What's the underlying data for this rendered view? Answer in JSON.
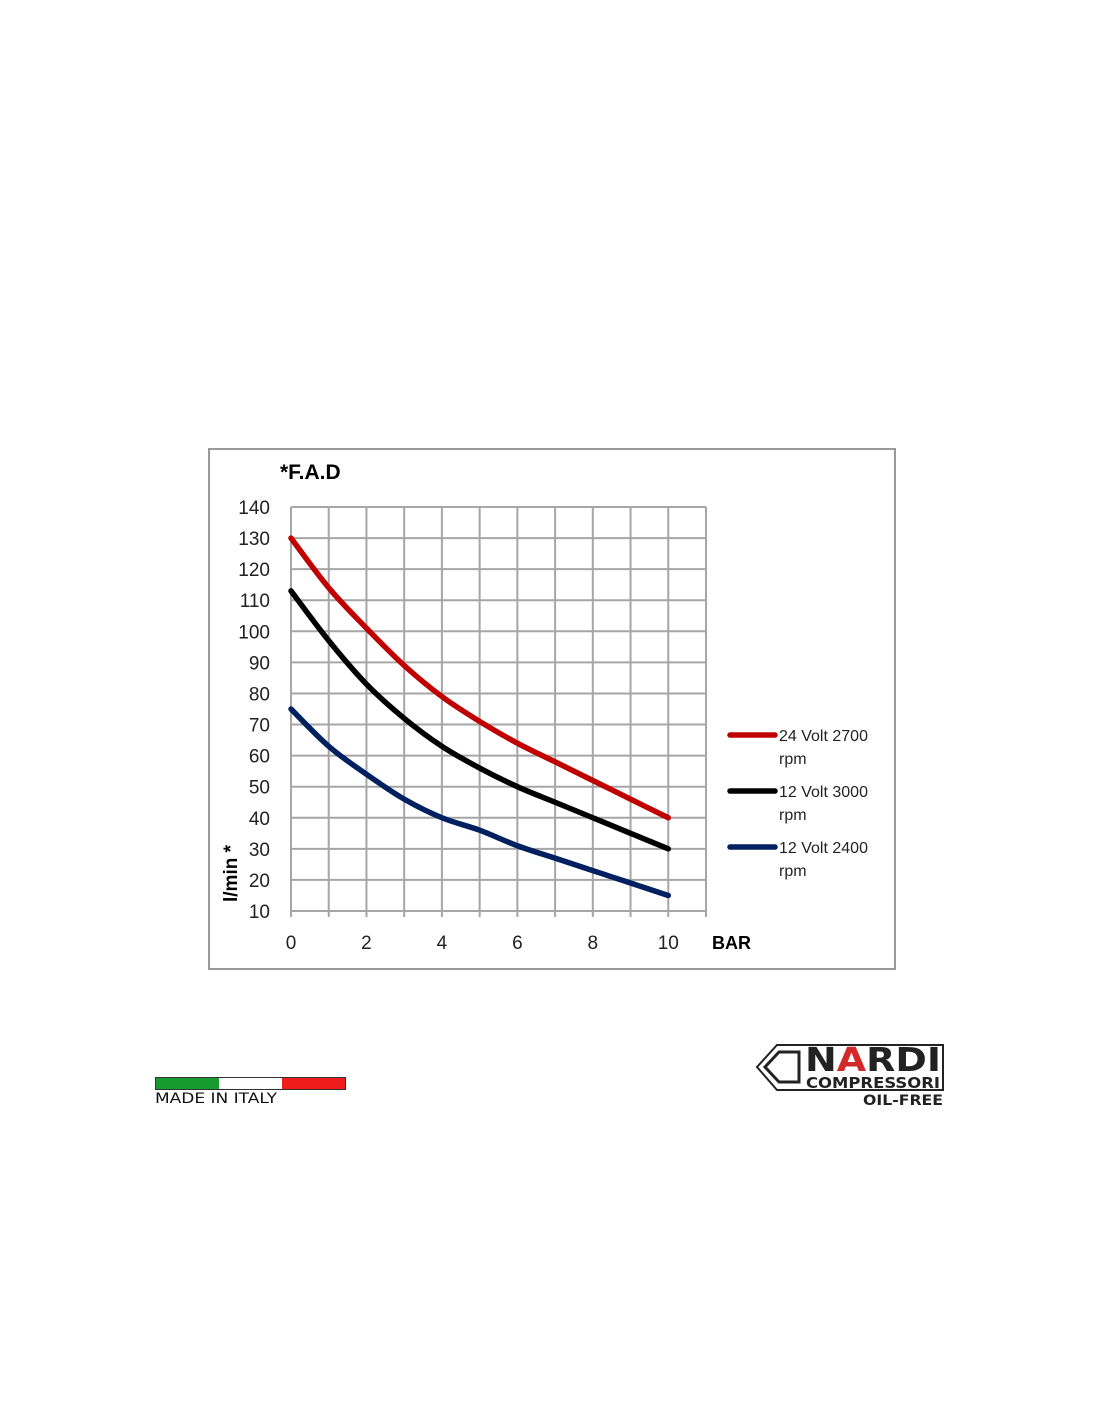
{
  "chart_data": {
    "type": "line",
    "title": "*F.A.D",
    "xlabel": "BAR",
    "ylabel": "l/min *",
    "xlim": [
      0,
      11
    ],
    "ylim": [
      10,
      140
    ],
    "xticks": [
      0,
      2,
      4,
      6,
      8,
      10
    ],
    "yticks": [
      10,
      20,
      30,
      40,
      50,
      60,
      70,
      80,
      90,
      100,
      110,
      120,
      130,
      140
    ],
    "grid": true,
    "legend_position": "right",
    "x": [
      0,
      1,
      2,
      3,
      4,
      5,
      6,
      7,
      8,
      9,
      10
    ],
    "series": [
      {
        "name": "24 Volt 2700 rpm",
        "name_lines": [
          "24 Volt 2700",
          "rpm"
        ],
        "color": "#c00000",
        "values": [
          130,
          114,
          101,
          89,
          79,
          71,
          64,
          58,
          52,
          46,
          40
        ]
      },
      {
        "name": "12 Volt 3000 rpm",
        "name_lines": [
          "12 Volt 3000",
          "rpm"
        ],
        "color": "#000000",
        "values": [
          113,
          97,
          83,
          72,
          63,
          56,
          50,
          45,
          40,
          35,
          30
        ]
      },
      {
        "name": "12 Volt 2400 rpm",
        "name_lines": [
          "12 Volt 2400",
          "rpm"
        ],
        "color": "#002060",
        "values": [
          75,
          63,
          54,
          46,
          40,
          36,
          31,
          27,
          23,
          19,
          15
        ]
      }
    ]
  },
  "footer": {
    "made_in": "MADE IN ITALY",
    "flag_colors": [
      "#169b2e",
      "#ffffff",
      "#ee1c1c"
    ],
    "logo": {
      "brand": "NARDI",
      "sub": "COMPRESSORI",
      "tag": "OIL-FREE",
      "accent": "#d22a2a"
    }
  }
}
